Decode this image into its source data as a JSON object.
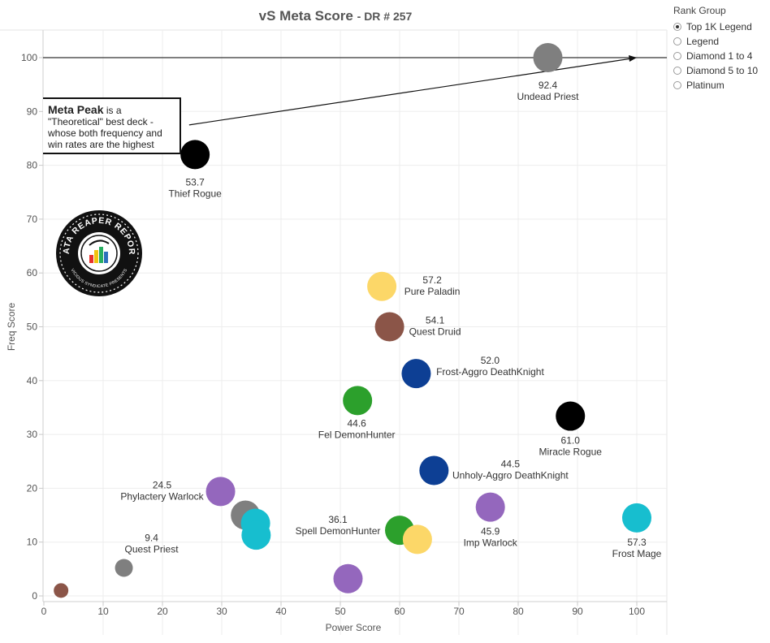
{
  "title": "vS Meta Score",
  "subtitle": "DR # 257",
  "legend": {
    "title": "Rank Group",
    "items": [
      {
        "label": "Top 1K Legend",
        "selected": true
      },
      {
        "label": "Legend",
        "selected": false
      },
      {
        "label": "Diamond 1 to 4",
        "selected": false
      },
      {
        "label": "Diamond 5 to 10",
        "selected": false
      },
      {
        "label": "Platinum",
        "selected": false
      }
    ]
  },
  "callout": {
    "bold": "Meta Peak",
    "text": " is a \"Theoretical\" best deck - whose both frequency and win rates are the highest"
  },
  "logo": {
    "text": "DATA REAPER REPORT",
    "subtext": "VICIOUS SYNDICATE PRESENTS"
  },
  "chart_data": {
    "type": "scatter",
    "xlabel": "Power Score",
    "ylabel": "Freq Score",
    "xlim": [
      0,
      105
    ],
    "ylim": [
      -1,
      105
    ],
    "xticks": [
      0,
      10,
      20,
      30,
      40,
      50,
      60,
      70,
      80,
      90,
      100
    ],
    "yticks": [
      0,
      10,
      20,
      30,
      40,
      50,
      60,
      70,
      80,
      90,
      100
    ],
    "grid": true,
    "reference_line": {
      "y": 100
    },
    "arrow": {
      "from": [
        24.5,
        87.5
      ],
      "to": [
        100,
        100
      ]
    },
    "points": [
      {
        "x": 85,
        "y": 100,
        "score": "92.4",
        "name": "Undead Priest",
        "color": "#7f7f7f"
      },
      {
        "x": 25.5,
        "y": 82,
        "score": "53.7",
        "name": "Thief Rogue",
        "color": "#000000"
      },
      {
        "x": 57,
        "y": 57.5,
        "score": "57.2",
        "name": "Pure Paladin",
        "color": "#fcd768"
      },
      {
        "x": 58.3,
        "y": 50,
        "score": "54.1",
        "name": "Quest Druid",
        "color": "#8b5548"
      },
      {
        "x": 62.8,
        "y": 41.3,
        "score": "52.0",
        "name": "Frost-Aggro DeathKnight",
        "color": "#0d3f94"
      },
      {
        "x": 88.8,
        "y": 33.4,
        "score": "61.0",
        "name": "Miracle Rogue",
        "color": "#000000"
      },
      {
        "x": 52.9,
        "y": 36.3,
        "score": "44.6",
        "name": "Fel DemonHunter",
        "color": "#2ca02c"
      },
      {
        "x": 65.8,
        "y": 23.3,
        "score": "44.5",
        "name": "Unholy-Aggro DeathKnight",
        "color": "#0d3f94"
      },
      {
        "x": 29.8,
        "y": 19.4,
        "score": "24.5",
        "name": "Phylactery Warlock",
        "color": "#9467bd"
      },
      {
        "x": 75.3,
        "y": 16.5,
        "score": "45.9",
        "name": "Imp Warlock",
        "color": "#9467bd"
      },
      {
        "x": 100,
        "y": 14.5,
        "score": "57.3",
        "name": "Frost Mage",
        "color": "#17becf"
      },
      {
        "x": 60,
        "y": 12.2,
        "score": "36.1",
        "name": "Spell DemonHunter",
        "color": "#2ca02c"
      },
      {
        "x": 13.5,
        "y": 5.2,
        "score": "9.4",
        "name": "Quest Priest",
        "color": "#7f7f7f"
      },
      {
        "x": 34,
        "y": 15,
        "score": "",
        "name": "",
        "color": "#7f7f7f"
      },
      {
        "x": 35.7,
        "y": 13.5,
        "score": "",
        "name": "",
        "color": "#17becf"
      },
      {
        "x": 35.8,
        "y": 11.3,
        "score": "",
        "name": "",
        "color": "#17becf"
      },
      {
        "x": 63,
        "y": 10.5,
        "score": "",
        "name": "",
        "color": "#fcd768"
      },
      {
        "x": 51.3,
        "y": 3.2,
        "score": "",
        "name": "",
        "color": "#9467bd"
      },
      {
        "x": 2.9,
        "y": 1,
        "score": "",
        "name": "",
        "color": "#8b5548"
      }
    ]
  }
}
